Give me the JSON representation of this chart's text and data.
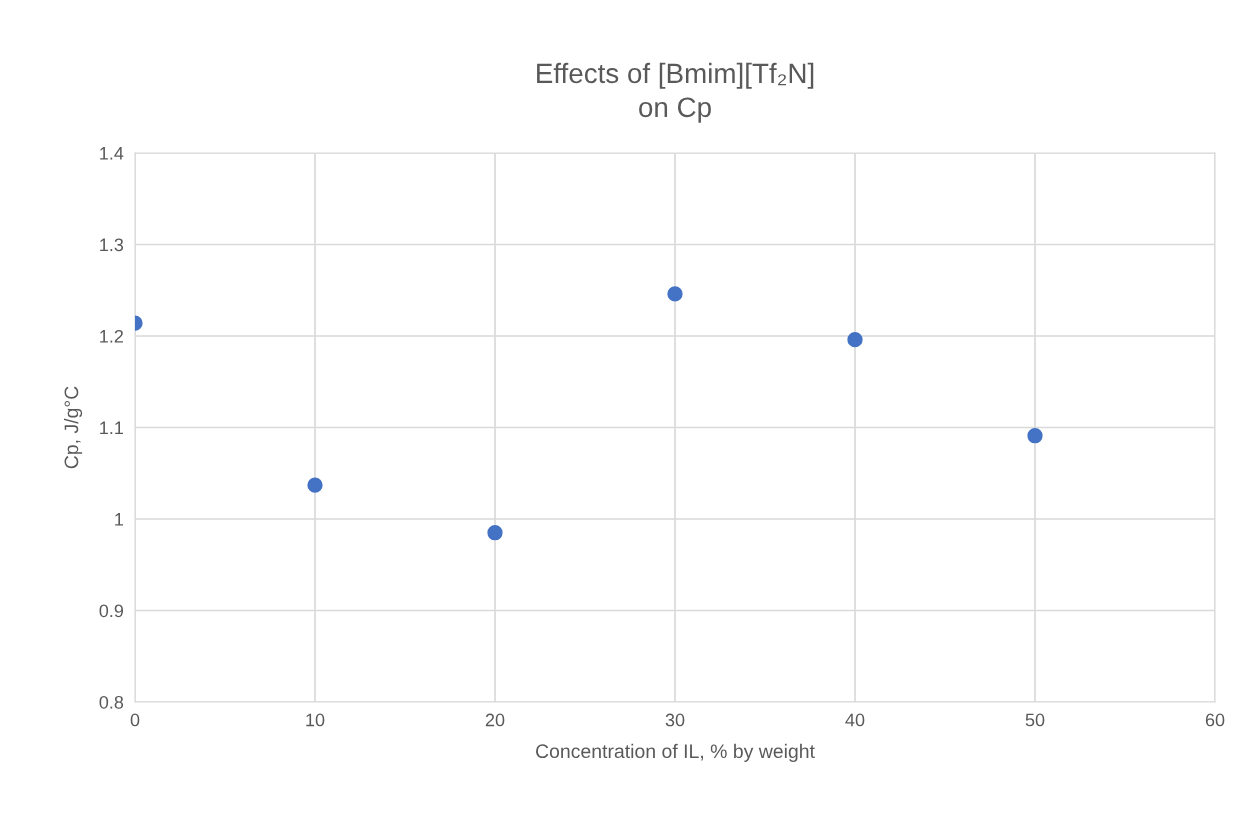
{
  "chart_data": {
    "type": "scatter",
    "title": "Effects of [Bmim][Tf₂N]\non Cp",
    "xlabel": "Concentration of IL, % by weight",
    "ylabel": "Cp, J/g°C",
    "x": [
      0,
      10,
      20,
      30,
      40,
      50
    ],
    "series": [
      {
        "color": "#4472c4",
        "values": [
          1.214,
          1.037,
          0.985,
          1.246,
          1.196,
          1.091
        ]
      }
    ],
    "xlim": [
      0,
      60
    ],
    "xticks": [
      0,
      10,
      20,
      30,
      40,
      50,
      60
    ],
    "ylim": [
      0.8,
      1.4
    ],
    "yticks": [
      0.8,
      0.9,
      1,
      1.1,
      1.2,
      1.3,
      1.4
    ],
    "grid": true,
    "marker": "circle",
    "legend": false
  }
}
